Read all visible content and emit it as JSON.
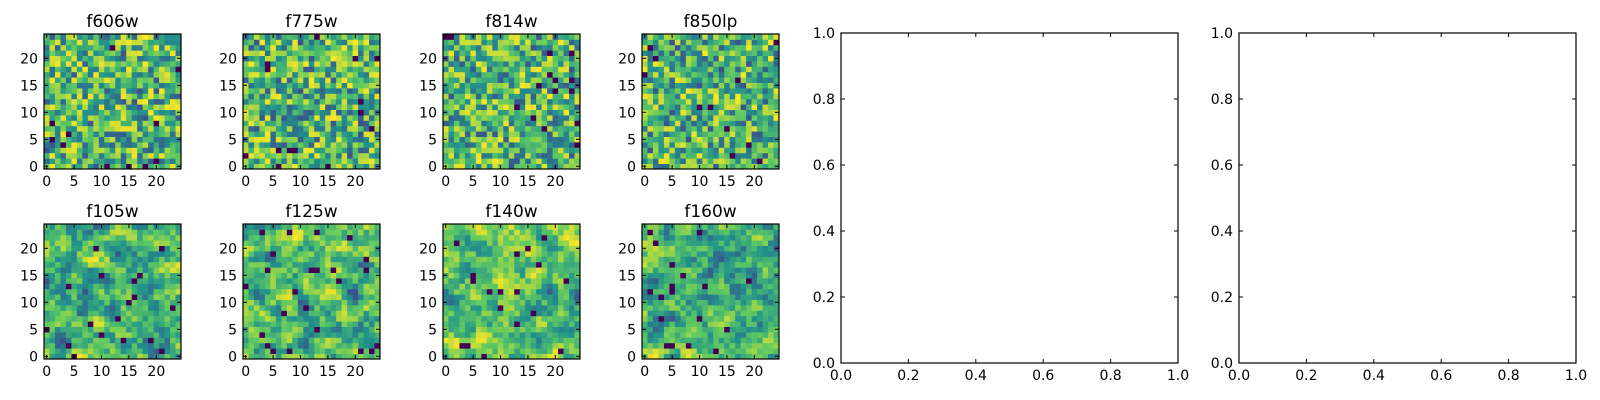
{
  "chart_data": [
    {
      "type": "heatmap",
      "title": "f606w",
      "x_ticks": [
        "0",
        "5",
        "10",
        "15",
        "20"
      ],
      "y_ticks": [
        "0",
        "5",
        "10",
        "15",
        "20"
      ],
      "xlim": [
        0,
        24
      ],
      "ylim": [
        0,
        24
      ],
      "colormap": "viridis"
    },
    {
      "type": "heatmap",
      "title": "f775w",
      "x_ticks": [
        "0",
        "5",
        "10",
        "15",
        "20"
      ],
      "y_ticks": [
        "0",
        "5",
        "10",
        "15",
        "20"
      ],
      "xlim": [
        0,
        24
      ],
      "ylim": [
        0,
        24
      ],
      "colormap": "viridis"
    },
    {
      "type": "heatmap",
      "title": "f814w",
      "x_ticks": [
        "0",
        "5",
        "10",
        "15",
        "20"
      ],
      "y_ticks": [
        "0",
        "5",
        "10",
        "15",
        "20"
      ],
      "xlim": [
        0,
        24
      ],
      "ylim": [
        0,
        24
      ],
      "colormap": "viridis"
    },
    {
      "type": "heatmap",
      "title": "f850lp",
      "x_ticks": [
        "0",
        "5",
        "10",
        "15",
        "20"
      ],
      "y_ticks": [
        "0",
        "5",
        "10",
        "15",
        "20"
      ],
      "xlim": [
        0,
        24
      ],
      "ylim": [
        0,
        24
      ],
      "colormap": "viridis"
    },
    {
      "type": "heatmap",
      "title": "f105w",
      "x_ticks": [
        "0",
        "5",
        "10",
        "15",
        "20"
      ],
      "y_ticks": [
        "0",
        "5",
        "10",
        "15",
        "20"
      ],
      "xlim": [
        0,
        24
      ],
      "ylim": [
        0,
        24
      ],
      "colormap": "viridis"
    },
    {
      "type": "heatmap",
      "title": "f125w",
      "x_ticks": [
        "0",
        "5",
        "10",
        "15",
        "20"
      ],
      "y_ticks": [
        "0",
        "5",
        "10",
        "15",
        "20"
      ],
      "xlim": [
        0,
        24
      ],
      "ylim": [
        0,
        24
      ],
      "colormap": "viridis"
    },
    {
      "type": "heatmap",
      "title": "f140w",
      "x_ticks": [
        "0",
        "5",
        "10",
        "15",
        "20"
      ],
      "y_ticks": [
        "0",
        "5",
        "10",
        "15",
        "20"
      ],
      "xlim": [
        0,
        24
      ],
      "ylim": [
        0,
        24
      ],
      "colormap": "viridis"
    },
    {
      "type": "heatmap",
      "title": "f160w",
      "x_ticks": [
        "0",
        "5",
        "10",
        "15",
        "20"
      ],
      "y_ticks": [
        "0",
        "5",
        "10",
        "15",
        "20"
      ],
      "xlim": [
        0,
        24
      ],
      "ylim": [
        0,
        24
      ],
      "colormap": "viridis"
    },
    {
      "type": "scatter",
      "title": "",
      "x": [],
      "y": [],
      "x_ticks": [
        "0.0",
        "0.2",
        "0.4",
        "0.6",
        "0.8",
        "1.0"
      ],
      "y_ticks": [
        "0.0",
        "0.2",
        "0.4",
        "0.6",
        "0.8",
        "1.0"
      ],
      "xlim": [
        0,
        1
      ],
      "ylim": [
        0,
        1
      ]
    },
    {
      "type": "scatter",
      "title": "",
      "x": [],
      "y": [],
      "x_ticks": [
        "0.0",
        "0.2",
        "0.4",
        "0.6",
        "0.8",
        "1.0"
      ],
      "y_ticks": [
        "0.0",
        "0.2",
        "0.4",
        "0.6",
        "0.8",
        "1.0"
      ],
      "xlim": [
        0,
        1
      ],
      "ylim": [
        0,
        1
      ]
    }
  ],
  "colors": {
    "viridis": [
      "#440154",
      "#3b528b",
      "#21918c",
      "#5ec962",
      "#fde725"
    ],
    "axis": "#000000",
    "background": "#ffffff"
  }
}
